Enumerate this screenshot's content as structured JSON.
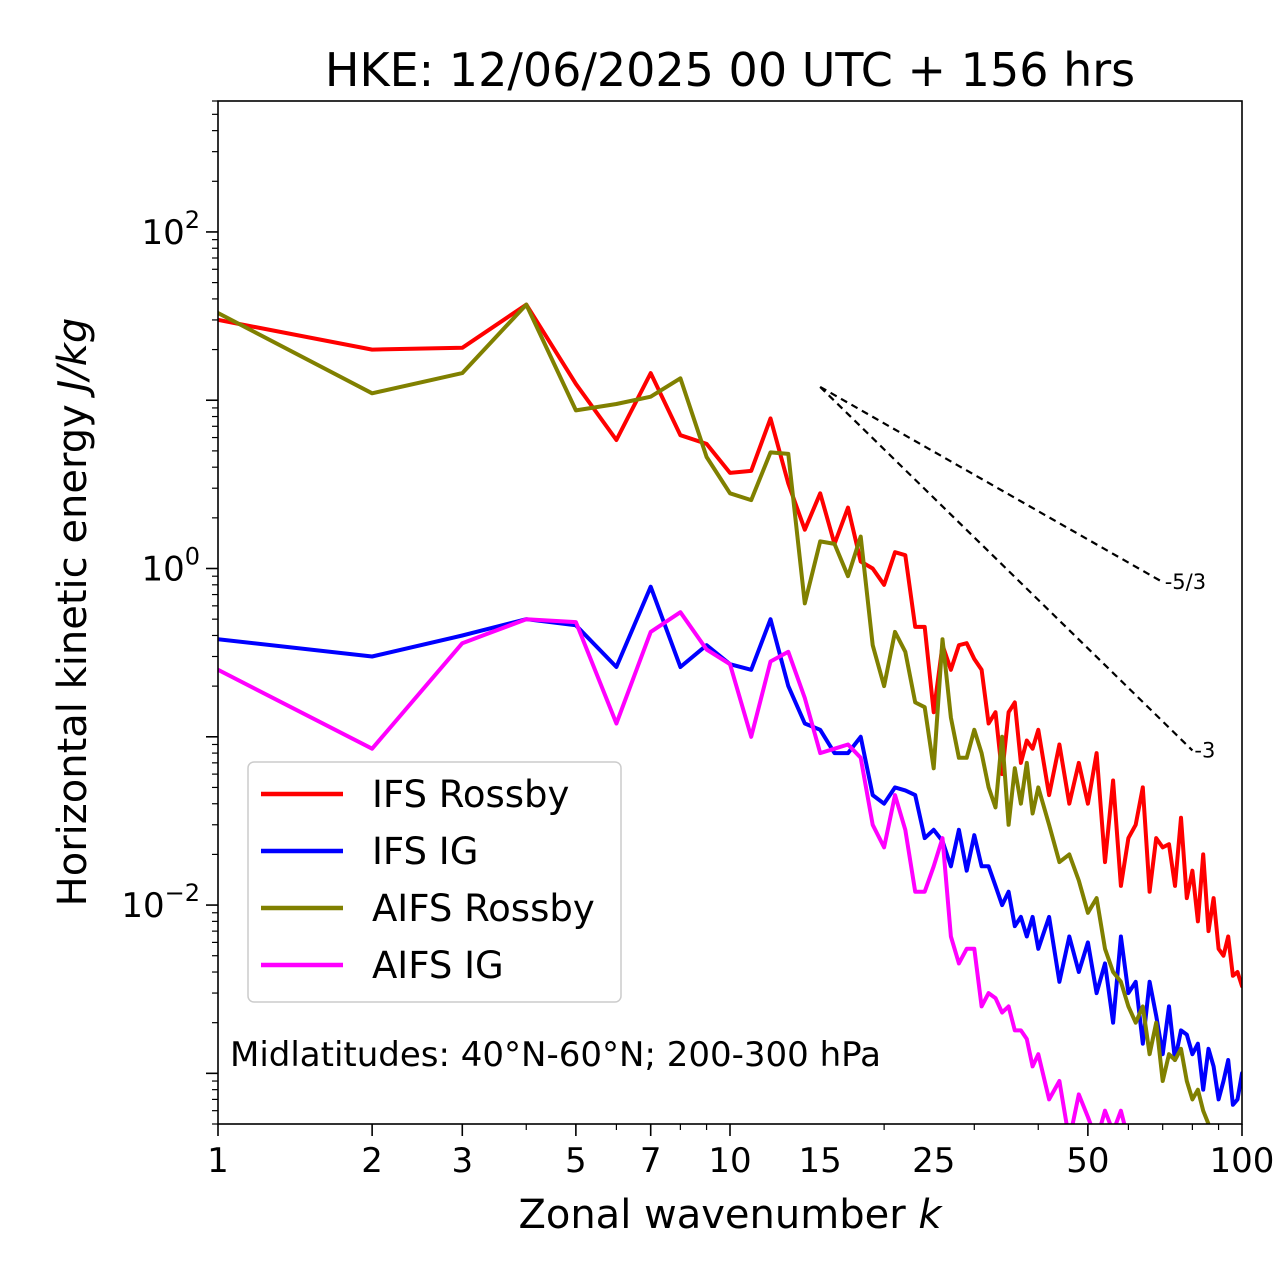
{
  "chart_data": {
    "type": "line",
    "title": "HKE: 12/06/2025 00 UTC + 156 hrs",
    "xlabel": "Zonal wavenumber k",
    "xlabel_main": "Zonal wavenumber ",
    "xlabel_italic": "k",
    "ylabel": "Horizontal kinetic energy J/kg",
    "ylabel_main": "Horizontal kinetic energy ",
    "ylabel_italic": "J/kg",
    "x_scale": "log",
    "y_scale": "log",
    "xlim": [
      1,
      100
    ],
    "ylim": [
      0.0005,
      600
    ],
    "x_ticks": [
      1,
      2,
      3,
      5,
      7,
      10,
      15,
      25,
      50,
      100
    ],
    "x_tick_labels": [
      "1",
      "2",
      "3",
      "5",
      "7",
      "10",
      "15",
      "25",
      "50",
      "100"
    ],
    "y_ticks": [
      {
        "value": 100,
        "base": "10",
        "exp": "2"
      },
      {
        "value": 1,
        "base": "10",
        "exp": "0"
      },
      {
        "value": 0.01,
        "base": "10",
        "exp": "−2"
      }
    ],
    "grid": false,
    "legend_position": "lower-left",
    "annotation": "Midlatitudes: 40°N-60°N; 200-300 hPa",
    "reference_lines": [
      {
        "label": "-5/3",
        "x": [
          15,
          70
        ],
        "y": [
          12,
          0.83
        ],
        "style": "dashed",
        "color": "#000000"
      },
      {
        "label": "-3",
        "x": [
          15,
          80
        ],
        "y": [
          12,
          0.083
        ],
        "style": "dashed",
        "color": "#000000"
      }
    ],
    "series": [
      {
        "name": "IFS Rossby",
        "color": "#ff0000",
        "x": [
          1,
          2,
          3,
          4,
          5,
          6,
          7,
          8,
          9,
          10,
          11,
          12,
          13,
          14,
          15,
          16,
          17,
          18,
          19,
          20,
          21,
          22,
          23,
          24,
          25,
          26,
          27,
          28,
          29,
          30,
          31,
          32,
          33,
          34,
          35,
          36,
          37,
          38,
          39,
          40,
          42,
          44,
          46,
          48,
          50,
          52,
          54,
          56,
          58,
          60,
          62,
          64,
          66,
          68,
          70,
          72,
          74,
          76,
          78,
          80,
          82,
          84,
          86,
          88,
          90,
          92,
          94,
          96,
          98,
          100
        ],
        "y": [
          30,
          20,
          20.5,
          37,
          12.5,
          5.8,
          14.5,
          6.2,
          5.5,
          3.7,
          3.8,
          7.8,
          3.2,
          1.7,
          2.8,
          1.4,
          2.3,
          1.1,
          1.0,
          0.8,
          1.25,
          1.2,
          0.45,
          0.45,
          0.14,
          0.35,
          0.25,
          0.35,
          0.36,
          0.29,
          0.25,
          0.12,
          0.14,
          0.06,
          0.14,
          0.16,
          0.07,
          0.095,
          0.085,
          0.11,
          0.045,
          0.09,
          0.04,
          0.07,
          0.04,
          0.08,
          0.018,
          0.055,
          0.013,
          0.025,
          0.03,
          0.05,
          0.012,
          0.025,
          0.022,
          0.023,
          0.013,
          0.033,
          0.011,
          0.016,
          0.008,
          0.02,
          0.007,
          0.011,
          0.0055,
          0.005,
          0.0065,
          0.0038,
          0.004,
          0.0033
        ]
      },
      {
        "name": "IFS IG",
        "color": "#0000ff",
        "x": [
          1,
          2,
          3,
          4,
          5,
          6,
          7,
          8,
          9,
          10,
          11,
          12,
          13,
          14,
          15,
          16,
          17,
          18,
          19,
          20,
          21,
          22,
          23,
          24,
          25,
          26,
          27,
          28,
          29,
          30,
          31,
          32,
          33,
          34,
          35,
          36,
          37,
          38,
          39,
          40,
          42,
          44,
          46,
          48,
          50,
          52,
          54,
          56,
          58,
          60,
          62,
          64,
          66,
          68,
          70,
          72,
          74,
          76,
          78,
          80,
          82,
          84,
          86,
          88,
          90,
          92,
          94,
          96,
          98,
          100
        ],
        "y": [
          0.38,
          0.3,
          0.4,
          0.5,
          0.46,
          0.26,
          0.78,
          0.26,
          0.35,
          0.27,
          0.25,
          0.5,
          0.2,
          0.12,
          0.11,
          0.08,
          0.08,
          0.1,
          0.045,
          0.04,
          0.05,
          0.048,
          0.045,
          0.025,
          0.028,
          0.024,
          0.017,
          0.028,
          0.016,
          0.026,
          0.017,
          0.017,
          0.013,
          0.01,
          0.012,
          0.0075,
          0.0085,
          0.0065,
          0.0085,
          0.0055,
          0.0085,
          0.0035,
          0.0065,
          0.004,
          0.006,
          0.003,
          0.0045,
          0.002,
          0.0065,
          0.003,
          0.0035,
          0.0015,
          0.0035,
          0.0022,
          0.0013,
          0.0025,
          0.0012,
          0.0018,
          0.0017,
          0.0013,
          0.0015,
          0.0008,
          0.0014,
          0.0011,
          0.0007,
          0.0009,
          0.0012,
          0.00065,
          0.0007,
          0.001
        ]
      },
      {
        "name": "AIFS Rossby",
        "color": "#808000",
        "x": [
          1,
          2,
          3,
          4,
          5,
          6,
          7,
          8,
          9,
          10,
          11,
          12,
          13,
          14,
          15,
          16,
          17,
          18,
          19,
          20,
          21,
          22,
          23,
          24,
          25,
          26,
          27,
          28,
          29,
          30,
          31,
          32,
          33,
          34,
          35,
          36,
          37,
          38,
          39,
          40,
          42,
          44,
          46,
          48,
          50,
          52,
          54,
          56,
          58,
          60,
          62,
          64,
          66,
          68,
          70,
          72,
          74,
          76,
          78,
          80,
          82,
          84,
          86
        ],
        "y": [
          33,
          11,
          14.5,
          37,
          8.7,
          9.5,
          10.5,
          13.5,
          4.6,
          2.8,
          2.55,
          4.9,
          4.8,
          0.62,
          1.45,
          1.4,
          0.9,
          1.55,
          0.35,
          0.2,
          0.42,
          0.32,
          0.16,
          0.15,
          0.065,
          0.38,
          0.13,
          0.075,
          0.075,
          0.11,
          0.08,
          0.05,
          0.038,
          0.1,
          0.03,
          0.065,
          0.04,
          0.07,
          0.035,
          0.05,
          0.03,
          0.018,
          0.02,
          0.014,
          0.009,
          0.011,
          0.0055,
          0.004,
          0.0035,
          0.0025,
          0.002,
          0.0025,
          0.0013,
          0.002,
          0.0009,
          0.0013,
          0.0012,
          0.0014,
          0.0009,
          0.0007,
          0.0008,
          0.0006,
          0.0005
        ]
      },
      {
        "name": "AIFS IG",
        "color": "#ff00ff",
        "x": [
          1,
          2,
          3,
          4,
          5,
          6,
          7,
          8,
          9,
          10,
          11,
          12,
          13,
          14,
          15,
          16,
          17,
          18,
          19,
          20,
          21,
          22,
          23,
          24,
          25,
          26,
          27,
          28,
          29,
          30,
          31,
          32,
          33,
          34,
          35,
          36,
          37,
          38,
          39,
          40,
          42,
          44,
          46,
          48,
          50,
          52,
          54,
          56,
          58,
          60,
          62,
          64
        ],
        "y": [
          0.25,
          0.085,
          0.36,
          0.5,
          0.48,
          0.12,
          0.42,
          0.55,
          0.33,
          0.27,
          0.1,
          0.28,
          0.32,
          0.17,
          0.08,
          0.085,
          0.09,
          0.075,
          0.03,
          0.022,
          0.045,
          0.028,
          0.012,
          0.012,
          0.017,
          0.025,
          0.0065,
          0.0045,
          0.0055,
          0.0055,
          0.0025,
          0.003,
          0.0028,
          0.0023,
          0.0025,
          0.0018,
          0.0018,
          0.0016,
          0.0011,
          0.0013,
          0.0007,
          0.0009,
          0.0004,
          0.00075,
          0.00055,
          0.0004,
          0.0006,
          0.00045,
          0.0006,
          0.0004,
          0.00045,
          0.0004
        ]
      }
    ]
  }
}
